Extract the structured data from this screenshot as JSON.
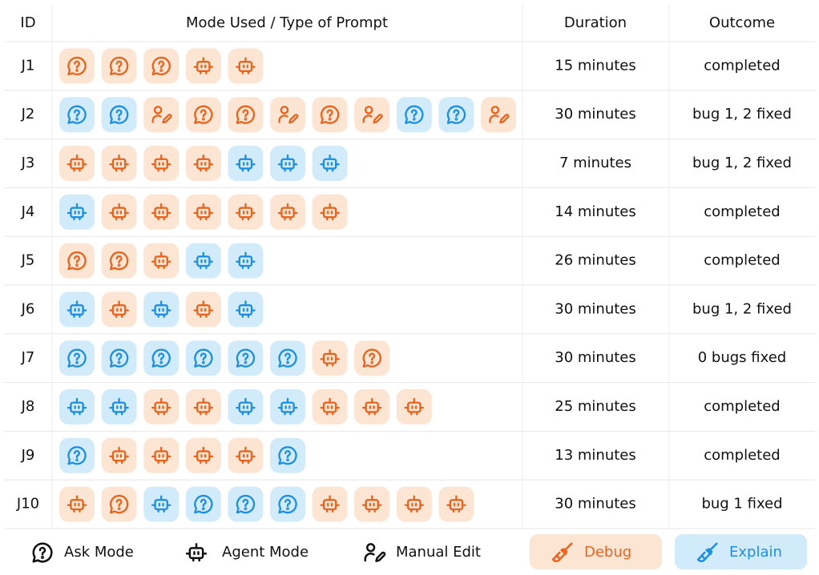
{
  "table": {
    "columns": [
      "ID",
      "Mode Used / Type of Prompt",
      "Duration",
      "Outcome"
    ],
    "rows": [
      {
        "id": "J1",
        "prompts": [
          [
            0,
            0
          ],
          [
            0,
            0
          ],
          [
            0,
            0
          ],
          [
            1,
            0
          ],
          [
            1,
            0
          ]
        ],
        "duration": "15 minutes",
        "outcome": "completed"
      },
      {
        "id": "J2",
        "prompts": [
          [
            0,
            1
          ],
          [
            0,
            1
          ],
          [
            2,
            0
          ],
          [
            0,
            0
          ],
          [
            0,
            0
          ],
          [
            2,
            0
          ],
          [
            0,
            0
          ],
          [
            2,
            0
          ],
          [
            0,
            1
          ],
          [
            0,
            1
          ],
          [
            2,
            0
          ]
        ],
        "duration": "30 minutes",
        "outcome": "bug 1, 2 fixed"
      },
      {
        "id": "J3",
        "prompts": [
          [
            1,
            0
          ],
          [
            1,
            0
          ],
          [
            1,
            0
          ],
          [
            1,
            0
          ],
          [
            1,
            1
          ],
          [
            1,
            1
          ],
          [
            1,
            1
          ]
        ],
        "duration": "7 minutes",
        "outcome": "bug 1, 2 fixed"
      },
      {
        "id": "J4",
        "prompts": [
          [
            1,
            1
          ],
          [
            1,
            0
          ],
          [
            1,
            0
          ],
          [
            1,
            0
          ],
          [
            1,
            0
          ],
          [
            1,
            0
          ],
          [
            1,
            0
          ]
        ],
        "duration": "14 minutes",
        "outcome": "completed"
      },
      {
        "id": "J5",
        "prompts": [
          [
            0,
            0
          ],
          [
            0,
            0
          ],
          [
            1,
            0
          ],
          [
            1,
            1
          ],
          [
            1,
            1
          ]
        ],
        "duration": "26 minutes",
        "outcome": "completed"
      },
      {
        "id": "J6",
        "prompts": [
          [
            1,
            1
          ],
          [
            1,
            0
          ],
          [
            1,
            1
          ],
          [
            1,
            0
          ],
          [
            1,
            1
          ]
        ],
        "duration": "30 minutes",
        "outcome": "bug 1, 2 fixed"
      },
      {
        "id": "J7",
        "prompts": [
          [
            0,
            1
          ],
          [
            0,
            1
          ],
          [
            0,
            1
          ],
          [
            0,
            1
          ],
          [
            0,
            1
          ],
          [
            0,
            1
          ],
          [
            1,
            0
          ],
          [
            0,
            0
          ]
        ],
        "duration": "30 minutes",
        "outcome": "0 bugs fixed"
      },
      {
        "id": "J8",
        "prompts": [
          [
            1,
            1
          ],
          [
            1,
            1
          ],
          [
            1,
            0
          ],
          [
            1,
            0
          ],
          [
            1,
            1
          ],
          [
            1,
            1
          ],
          [
            1,
            0
          ],
          [
            1,
            0
          ],
          [
            1,
            0
          ]
        ],
        "duration": "25 minutes",
        "outcome": "completed"
      },
      {
        "id": "J9",
        "prompts": [
          [
            0,
            1
          ],
          [
            1,
            0
          ],
          [
            1,
            0
          ],
          [
            1,
            0
          ],
          [
            1,
            0
          ],
          [
            0,
            1
          ]
        ],
        "duration": "13 minutes",
        "outcome": "completed"
      },
      {
        "id": "J10",
        "prompts": [
          [
            1,
            0
          ],
          [
            0,
            0
          ],
          [
            1,
            1
          ],
          [
            0,
            1
          ],
          [
            0,
            1
          ],
          [
            0,
            1
          ],
          [
            1,
            0
          ],
          [
            1,
            0
          ],
          [
            1,
            0
          ],
          [
            1,
            0
          ]
        ],
        "duration": "30 minutes",
        "outcome": "bug 1 fixed"
      }
    ]
  },
  "legend": {
    "modes": [
      "Ask Mode",
      "Agent Mode",
      "Manual Edit"
    ],
    "types": [
      "Debug",
      "Explain"
    ]
  }
}
